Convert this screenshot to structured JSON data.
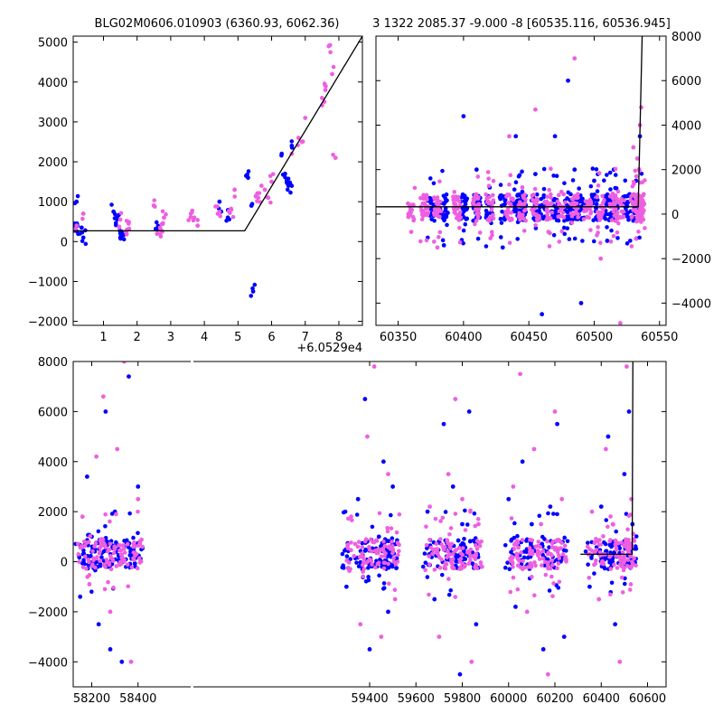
{
  "chart_data": [
    {
      "type": "scatter",
      "title": "BLG02M0606.010903 (6360.93, 6062.36)",
      "x_offset_label": "+6.0529e4",
      "xlim": [
        0.1,
        8.7
      ],
      "ylim": [
        -2100,
        5150
      ],
      "xticks": [
        "1",
        "2",
        "3",
        "4",
        "5",
        "6",
        "7",
        "8"
      ],
      "yticks": [
        "−2000",
        "−1000",
        "0",
        "1000",
        "2000",
        "3000",
        "4000",
        "5000"
      ],
      "series": [
        {
          "color": "#0000ff",
          "x": [
            0.15,
            0.2,
            0.3,
            0.35,
            0.4,
            1.3,
            1.4,
            1.5,
            1.55,
            2.6,
            4.45,
            4.5,
            4.7,
            5.3,
            5.4,
            5.45,
            6.3,
            6.4,
            6.45,
            6.5,
            6.55,
            6.6
          ],
          "y": [
            450,
            1000,
            200,
            350,
            100,
            750,
            600,
            100,
            200,
            300,
            1000,
            750,
            600,
            1600,
            900,
            -1250,
            2200,
            1700,
            1500,
            1400,
            1450,
            2400
          ]
        },
        {
          "color": "#ee5fe0",
          "x": [
            0.2,
            0.4,
            1.5,
            1.7,
            1.75,
            2.5,
            2.6,
            2.7,
            2.75,
            2.8,
            3.6,
            3.7,
            3.8,
            4.4,
            4.8,
            4.9,
            5.6,
            5.7,
            5.8,
            5.9,
            6.0,
            6.6,
            6.8,
            6.9,
            7.0,
            7.5,
            7.6,
            7.7,
            7.8,
            7.9
          ],
          "y": [
            400,
            700,
            550,
            300,
            450,
            900,
            200,
            300,
            250,
            600,
            700,
            600,
            400,
            700,
            800,
            1300,
            1100,
            1400,
            1300,
            1100,
            1500,
            2200,
            2600,
            2500,
            3100,
            3600,
            3800,
            4900,
            4200,
            2100
          ]
        }
      ],
      "model": {
        "x": [
          0.1,
          5.2,
          8.7
        ],
        "y": [
          270,
          270,
          5150
        ]
      }
    },
    {
      "type": "scatter",
      "title": "3 1322 2085.37 -9.000 -8 [60535.116, 60536.945]",
      "xlim": [
        60333,
        60555
      ],
      "ylim": [
        -5000,
        8000
      ],
      "xticks": [
        "60350",
        "60400",
        "60450",
        "60500",
        "60550"
      ],
      "yticks": [
        "−4000",
        "−2000",
        "0",
        "2000",
        "4000",
        "6000",
        "8000"
      ],
      "series": [
        {
          "color": "#0000ff",
          "x": [
            60375,
            60385,
            60400,
            60410,
            60420,
            60430,
            60440,
            60445,
            60455,
            60460,
            60470,
            60480,
            60485,
            60490,
            60500,
            60510,
            60515,
            60525,
            60532,
            60535
          ],
          "y": [
            500,
            -1400,
            4400,
            2000,
            1200,
            -1500,
            3500,
            1000,
            1800,
            -4500,
            3500,
            6000,
            2000,
            -4000,
            1500,
            -1200,
            2000,
            800,
            1500,
            3500
          ]
        },
        {
          "color": "#ee5fe0",
          "x": [
            60360,
            60370,
            60380,
            60395,
            60410,
            60420,
            60435,
            60445,
            60455,
            60465,
            60475,
            60485,
            60495,
            60505,
            60515,
            60520,
            60530,
            60533,
            60535,
            60536
          ],
          "y": [
            -800,
            800,
            -1500,
            300,
            200,
            -300,
            3500,
            1200,
            4700,
            -800,
            1000,
            7000,
            300,
            -2000,
            500,
            -4900,
            3000,
            2500,
            4000,
            4800
          ]
        }
      ],
      "model": {
        "x": [
          60333,
          60533.7,
          60536.7
        ],
        "y": [
          330,
          330,
          8000
        ]
      }
    },
    {
      "type": "scatter",
      "xlim": [
        58120,
        60680
      ],
      "ylim": [
        -5000,
        8000
      ],
      "xticks": [
        "58200",
        "58400",
        "59400",
        "59600",
        "59800",
        "60000",
        "60200",
        "60400",
        "60600"
      ],
      "yticks": [
        "−4000",
        "−2000",
        "0",
        "2000",
        "4000",
        "6000",
        "8000"
      ],
      "series": [
        {
          "color": "#0000ff",
          "x": [
            58150,
            58180,
            58200,
            58230,
            58260,
            58280,
            58300,
            58330,
            58360,
            58380,
            58400,
            59300,
            59350,
            59380,
            59400,
            59440,
            59460,
            59480,
            59500,
            59650,
            59680,
            59720,
            59760,
            59790,
            59800,
            59830,
            59860,
            60000,
            60030,
            60060,
            60100,
            60150,
            60180,
            60210,
            60240,
            60350,
            60400,
            60430,
            60460,
            60500,
            60520,
            60535
          ],
          "y": [
            -1400,
            3400,
            1000,
            -2500,
            6000,
            -3500,
            2000,
            -4000,
            7400,
            500,
            3000,
            -1000,
            2500,
            6500,
            -3500,
            1000,
            4000,
            -2000,
            3000,
            2000,
            -1500,
            5500,
            3000,
            -4500,
            1500,
            6000,
            -2500,
            2500,
            -1800,
            4000,
            1500,
            -3500,
            2200,
            5500,
            -3000,
            -1000,
            2200,
            5000,
            -2500,
            3500,
            6000,
            1500
          ]
        },
        {
          "color": "#ee5fe0",
          "x": [
            58160,
            58190,
            58220,
            58250,
            58280,
            58310,
            58340,
            58370,
            58400,
            59320,
            59360,
            59390,
            59420,
            59450,
            59480,
            59510,
            59660,
            59700,
            59740,
            59770,
            59800,
            59840,
            59870,
            60020,
            60050,
            60080,
            60110,
            60140,
            60170,
            60200,
            60230,
            60360,
            60390,
            60420,
            60450,
            60480,
            60510,
            60530
          ],
          "y": [
            1800,
            -900,
            4200,
            6600,
            -2000,
            4500,
            8000,
            -4000,
            2500,
            1800,
            -2500,
            5000,
            7800,
            -3000,
            3500,
            -1500,
            2200,
            -3000,
            3500,
            6500,
            2500,
            -4000,
            1500,
            3000,
            7500,
            -2000,
            4500,
            1500,
            -4500,
            6000,
            2500,
            2000,
            -1500,
            4500,
            1500,
            -4000,
            7800,
            2500
          ]
        }
      ],
      "model": {
        "x": [
          60310,
          60533.7,
          60536.7
        ],
        "y": [
          300,
          300,
          8000
        ]
      }
    }
  ]
}
